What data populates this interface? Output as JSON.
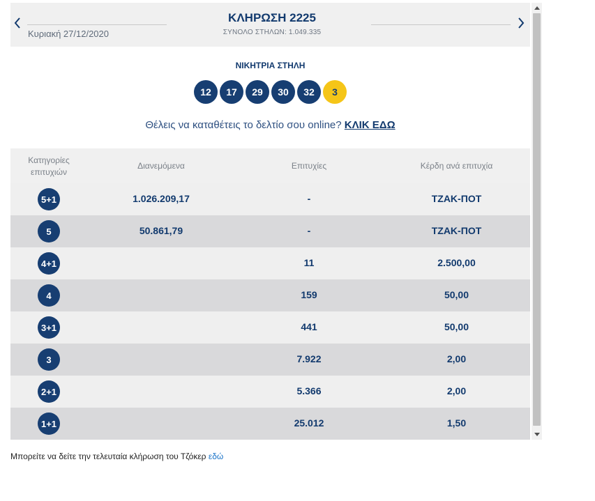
{
  "header": {
    "title": "ΚΛΗΡΩΣΗ 2225",
    "date": "Κυριακή 27/12/2020",
    "total_columns": "ΣΥΝΟΛΟ ΣΤΗΛΩΝ: 1.049.335"
  },
  "winning": {
    "title": "ΝΙΚΗΤΡΙΑ ΣΤΗΛΗ",
    "numbers": [
      "12",
      "17",
      "29",
      "30",
      "32"
    ],
    "joker": "3"
  },
  "online": {
    "text": "Θέλεις να καταθέτεις το δελτίο σου online? ",
    "link": "ΚΛΙΚ ΕΔΩ"
  },
  "table": {
    "headers": {
      "category": "Κατηγορίες επιτυχιών",
      "distributed": "Διανεμόμενα",
      "wins": "Επιτυχίες",
      "prize": "Κέρδη ανά επιτυχία"
    },
    "rows": [
      {
        "category": "5+1",
        "distributed": "1.026.209,17",
        "wins": "-",
        "prize": "ΤΖΑΚ-ΠΟΤ"
      },
      {
        "category": "5",
        "distributed": "50.861,79",
        "wins": "-",
        "prize": "ΤΖΑΚ-ΠΟΤ"
      },
      {
        "category": "4+1",
        "distributed": "",
        "wins": "11",
        "prize": "2.500,00"
      },
      {
        "category": "4",
        "distributed": "",
        "wins": "159",
        "prize": "50,00"
      },
      {
        "category": "3+1",
        "distributed": "",
        "wins": "441",
        "prize": "50,00"
      },
      {
        "category": "3",
        "distributed": "",
        "wins": "7.922",
        "prize": "2,00"
      },
      {
        "category": "2+1",
        "distributed": "",
        "wins": "5.366",
        "prize": "2,00"
      },
      {
        "category": "1+1",
        "distributed": "",
        "wins": "25.012",
        "prize": "1,50"
      }
    ]
  },
  "footer": {
    "text": "Μπορείτε να δείτε την τελευταία κλήρωση του Τζόκερ ",
    "link": "εδώ"
  },
  "colors": {
    "navy": "#173e72",
    "joker_yellow": "#f5c518",
    "row_light": "#efefef",
    "row_dark": "#d9d9db",
    "header_bg": "#f0f0f0",
    "link_blue": "#1a73c8"
  },
  "icons": {
    "prev": "chevron-left-icon",
    "next": "chevron-right-icon"
  }
}
